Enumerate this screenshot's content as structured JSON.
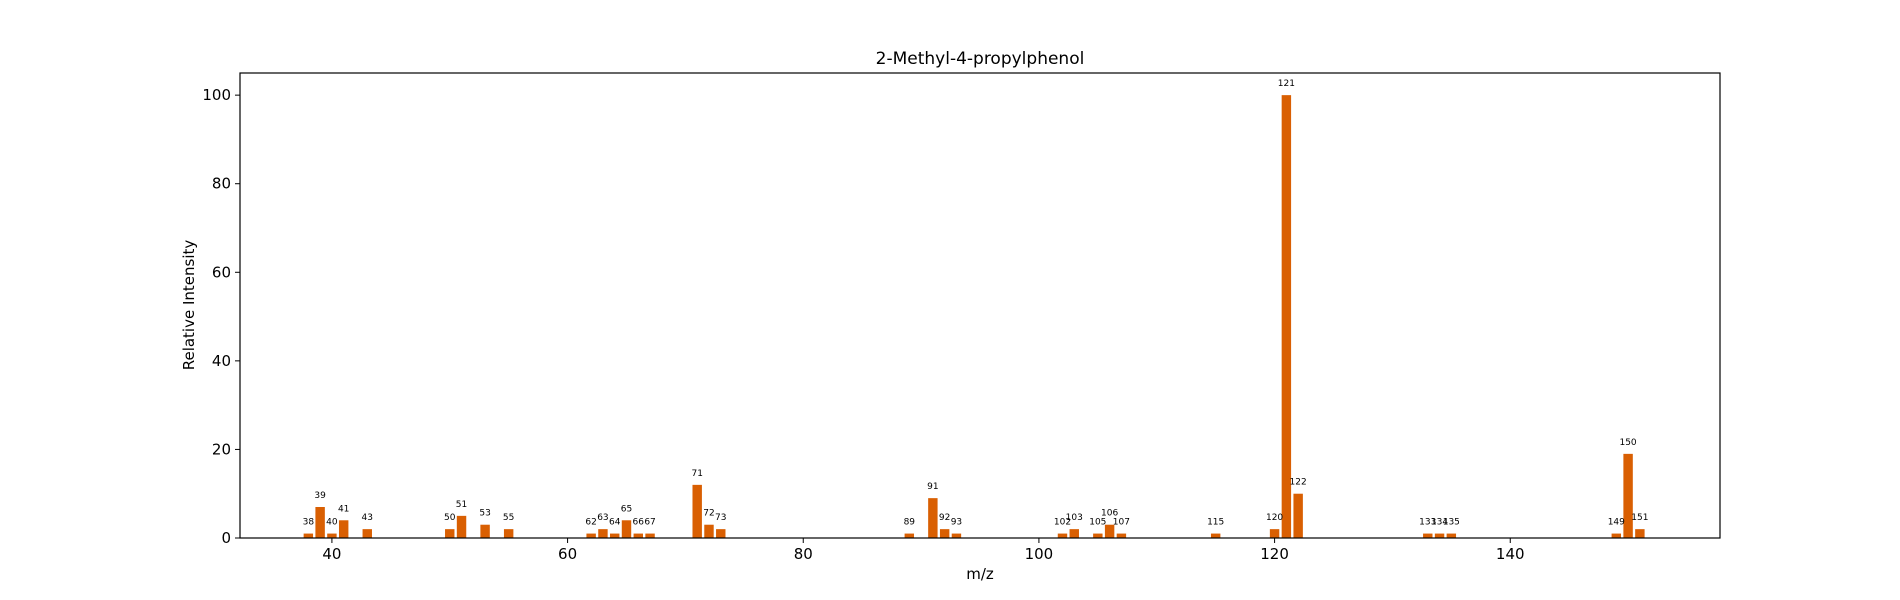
{
  "chart_data": {
    "type": "bar",
    "title": "2-Methyl-4-propylphenol",
    "xlabel": "m/z",
    "ylabel": "Relative Intensity",
    "xlim": [
      32.2,
      157.8
    ],
    "ylim": [
      0,
      105
    ],
    "xticks": [
      40,
      60,
      80,
      100,
      120,
      140
    ],
    "yticks": [
      0,
      20,
      40,
      60,
      80,
      100
    ],
    "bar_color": "#d95f02",
    "grid": false,
    "legend": "none",
    "x": [
      38,
      39,
      40,
      41,
      43,
      50,
      51,
      53,
      55,
      62,
      63,
      64,
      65,
      66,
      67,
      71,
      72,
      73,
      89,
      91,
      92,
      93,
      102,
      103,
      105,
      106,
      107,
      115,
      120,
      121,
      122,
      133,
      134,
      135,
      149,
      150,
      151
    ],
    "values": [
      1,
      7,
      1,
      4,
      2,
      2,
      5,
      3,
      2,
      1,
      2,
      1,
      4,
      1,
      1,
      12,
      3,
      2,
      1,
      9,
      2,
      1,
      1,
      2,
      1,
      3,
      1,
      1,
      2,
      100,
      10,
      1,
      1,
      1,
      1,
      19,
      2
    ],
    "labels": [
      "38",
      "39",
      "40",
      "41",
      "43",
      "50",
      "51",
      "53",
      "55",
      "62",
      "63",
      "64",
      "65",
      "66",
      "67",
      "71",
      "72",
      "73",
      "89",
      "91",
      "92",
      "93",
      "102",
      "103",
      "105",
      "106",
      "107",
      "115",
      "120",
      "121",
      "122",
      "133",
      "134",
      "135",
      "149",
      "150",
      "151"
    ]
  }
}
